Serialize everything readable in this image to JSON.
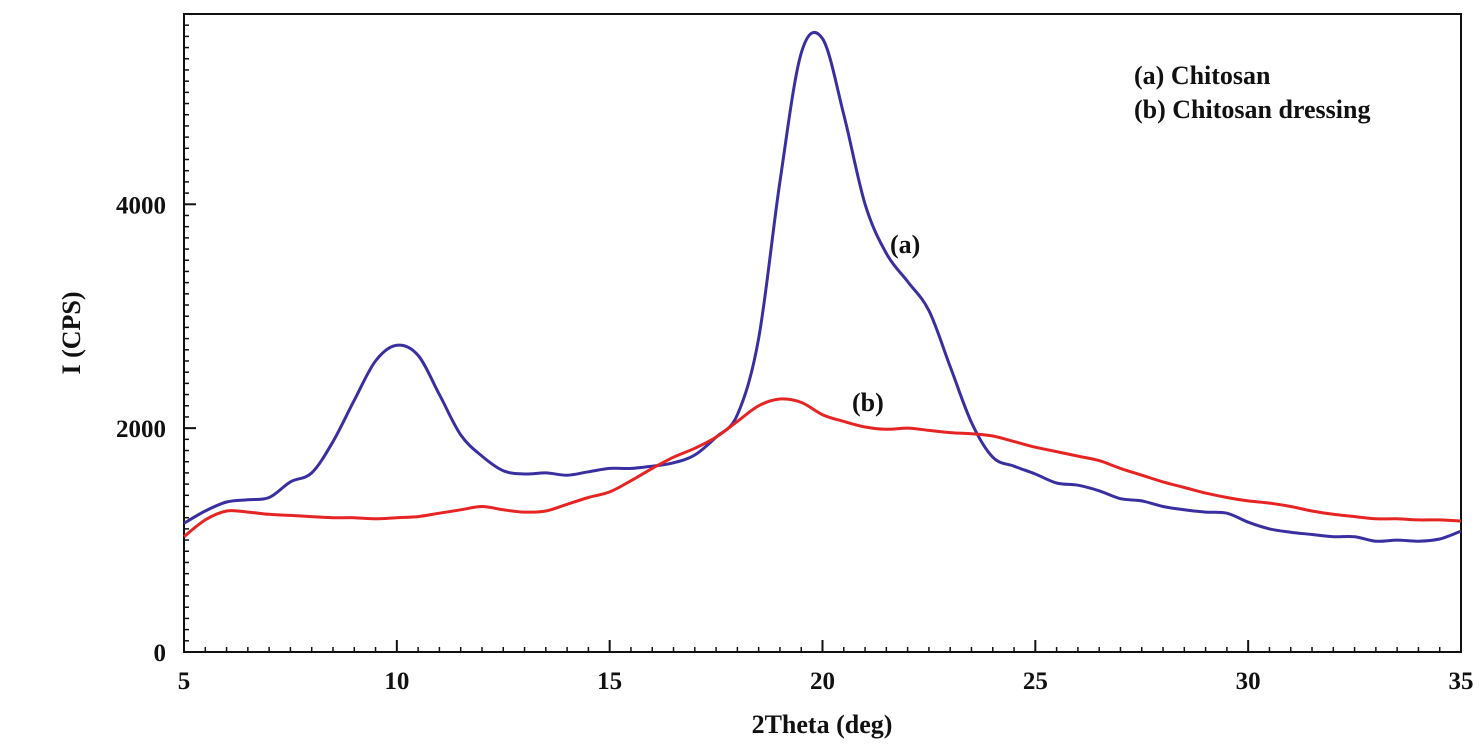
{
  "chart_data": {
    "type": "line",
    "title": "",
    "xlabel": "2Theta (deg)",
    "ylabel": "I (CPS)",
    "xlim": [
      5,
      35
    ],
    "ylim": [
      0,
      5700
    ],
    "xticks": [
      5,
      10,
      15,
      20,
      25,
      30,
      35
    ],
    "yticks": [
      0,
      2000,
      4000
    ],
    "grid": false,
    "legend": {
      "position": "top-right",
      "entries": [
        "(a) Chitosan",
        "(b) Chitosan dressing"
      ]
    },
    "series": [
      {
        "name": "(a) Chitosan",
        "label": "(a)",
        "color": "#3a2fa0",
        "x": [
          5,
          5.5,
          6,
          6.5,
          7,
          7.5,
          8,
          8.5,
          9,
          9.5,
          10,
          10.5,
          11,
          11.5,
          12,
          12.5,
          13,
          13.5,
          14,
          14.5,
          15,
          15.5,
          16,
          16.5,
          17,
          17.5,
          18,
          18.5,
          19,
          19.5,
          20,
          20.5,
          21,
          21.5,
          22,
          22.5,
          23,
          23.5,
          24,
          24.5,
          25,
          25.5,
          26,
          26.5,
          27,
          27.5,
          28,
          28.5,
          29,
          29.5,
          30,
          30.5,
          31,
          31.5,
          32,
          32.5,
          33,
          33.5,
          34,
          34.5,
          35
        ],
        "y": [
          1150,
          1260,
          1340,
          1360,
          1380,
          1520,
          1600,
          1880,
          2250,
          2600,
          2740,
          2650,
          2300,
          1940,
          1750,
          1620,
          1590,
          1600,
          1580,
          1610,
          1640,
          1640,
          1660,
          1690,
          1760,
          1920,
          2120,
          2800,
          4200,
          5350,
          5480,
          4800,
          4000,
          3560,
          3310,
          3050,
          2550,
          2050,
          1740,
          1660,
          1590,
          1510,
          1490,
          1440,
          1370,
          1350,
          1300,
          1270,
          1250,
          1240,
          1160,
          1100,
          1070,
          1050,
          1030,
          1030,
          990,
          1000,
          990,
          1010,
          1080
        ]
      },
      {
        "name": "(b) Chitosan dressing",
        "label": "(b)",
        "color": "#e62424",
        "x": [
          5,
          5.5,
          6,
          6.5,
          7,
          7.5,
          8,
          8.5,
          9,
          9.5,
          10,
          10.5,
          11,
          11.5,
          12,
          12.5,
          13,
          13.5,
          14,
          14.5,
          15,
          15.5,
          16,
          16.5,
          17,
          17.5,
          18,
          18.5,
          19,
          19.5,
          20,
          20.5,
          21,
          21.5,
          22,
          22.5,
          23,
          23.5,
          24,
          24.5,
          25,
          25.5,
          26,
          26.5,
          27,
          27.5,
          28,
          28.5,
          29,
          29.5,
          30,
          30.5,
          31,
          31.5,
          32,
          32.5,
          33,
          33.5,
          34,
          34.5,
          35
        ],
        "y": [
          1030,
          1180,
          1260,
          1250,
          1230,
          1220,
          1210,
          1200,
          1200,
          1190,
          1200,
          1210,
          1240,
          1270,
          1300,
          1270,
          1250,
          1260,
          1320,
          1380,
          1430,
          1530,
          1640,
          1740,
          1820,
          1920,
          2060,
          2200,
          2260,
          2230,
          2120,
          2060,
          2010,
          1990,
          2000,
          1980,
          1960,
          1950,
          1930,
          1880,
          1830,
          1790,
          1750,
          1710,
          1640,
          1580,
          1520,
          1470,
          1420,
          1380,
          1350,
          1330,
          1300,
          1260,
          1230,
          1210,
          1190,
          1190,
          1180,
          1180,
          1170
        ]
      }
    ]
  }
}
